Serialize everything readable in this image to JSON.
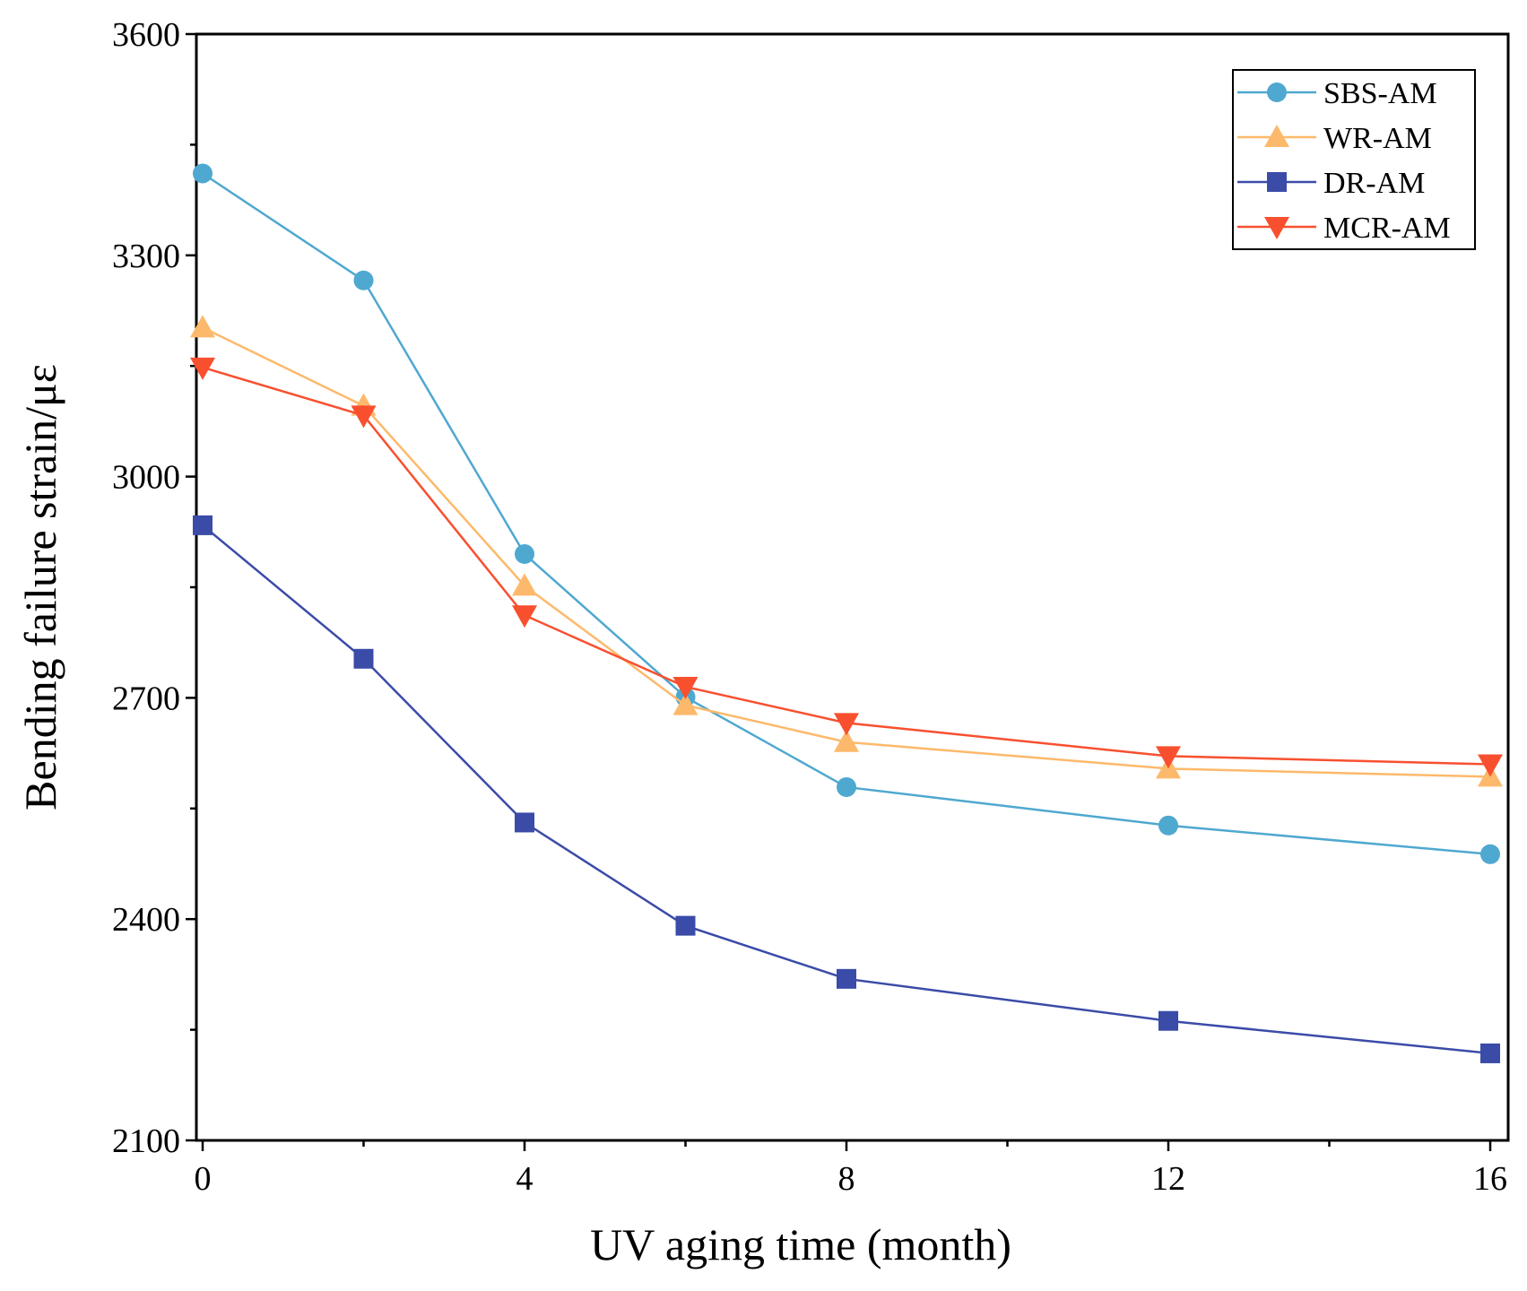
{
  "chart_data": {
    "type": "line",
    "title": "",
    "xlabel": "UV aging time (month)",
    "ylabel": "Bending failure strain/με",
    "xlim": [
      0,
      16
    ],
    "ylim": [
      2100,
      3600
    ],
    "xticks": [
      0,
      4,
      8,
      12,
      16
    ],
    "xtick_labels": [
      "0",
      "4",
      "8",
      "12",
      "16"
    ],
    "yticks": [
      2100,
      2400,
      2700,
      3000,
      3300,
      3600
    ],
    "ytick_labels": [
      "2100",
      "2400",
      "2700",
      "3000",
      "3300",
      "3600"
    ],
    "grid": false,
    "legend_position": "top-right",
    "x": [
      0,
      2,
      4,
      6,
      8,
      12,
      16
    ],
    "series": [
      {
        "name": "SBS-AM",
        "color": "#4fa8d0",
        "marker": "circle",
        "values": [
          3411,
          3266,
          2895,
          2701,
          2579,
          2527,
          2488
        ]
      },
      {
        "name": "WR-AM",
        "color": "#fdb96b",
        "marker": "triangle-up",
        "values": [
          3202,
          3096,
          2852,
          2690,
          2640,
          2604,
          2593
        ]
      },
      {
        "name": "DR-AM",
        "color": "#3b4ba8",
        "marker": "square",
        "values": [
          2934,
          2753,
          2531,
          2391,
          2319,
          2262,
          2218
        ]
      },
      {
        "name": "MCR-AM",
        "color": "#f8502f",
        "marker": "triangle-down",
        "values": [
          3148,
          3083,
          2812,
          2715,
          2666,
          2621,
          2610
        ]
      }
    ]
  }
}
